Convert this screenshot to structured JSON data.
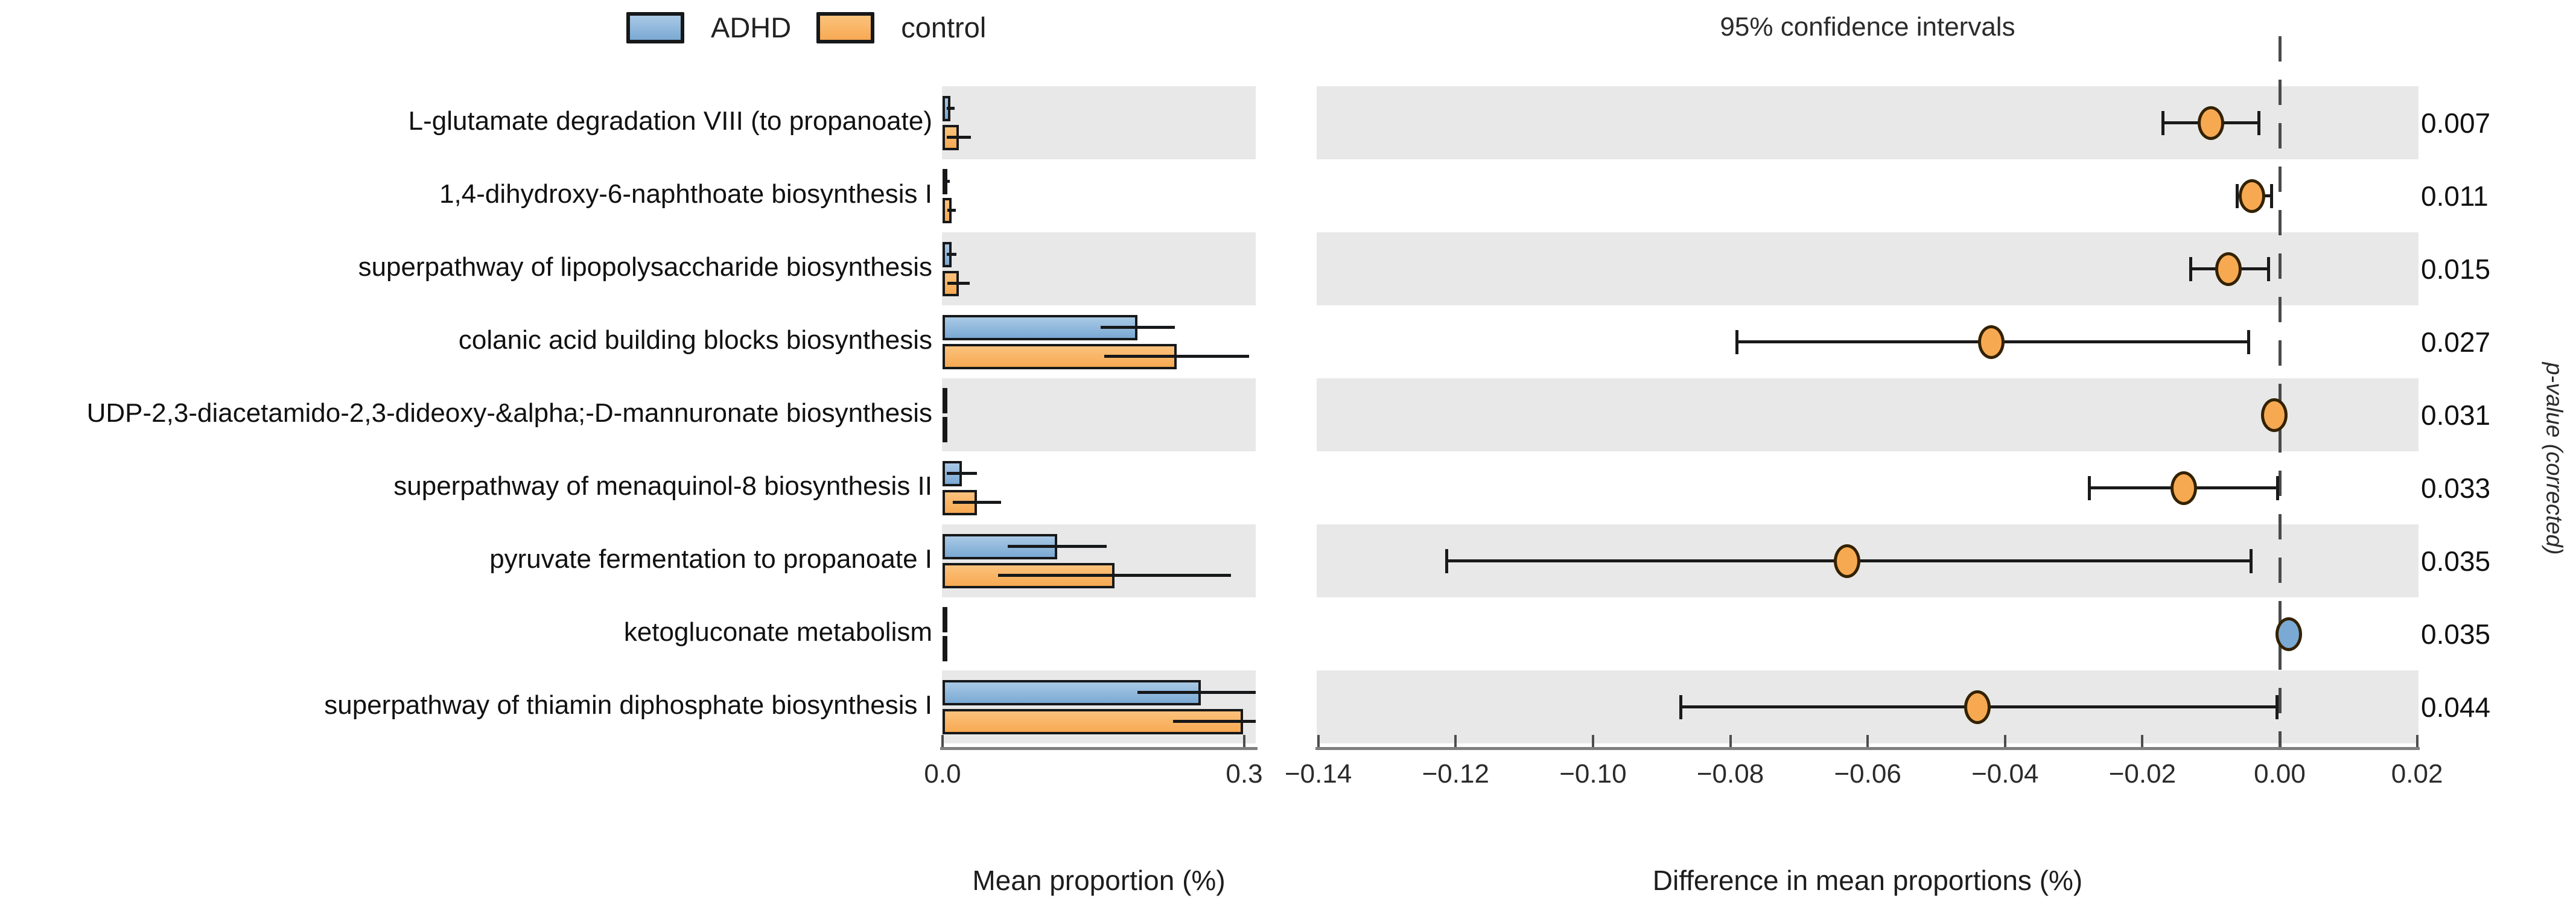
{
  "title": "95% confidence intervals",
  "legend": {
    "items": [
      {
        "label": "ADHD",
        "color": "#7aa9d4"
      },
      {
        "label": "control",
        "color": "#f7a952"
      }
    ]
  },
  "colors": {
    "adhd": "#7aa9d4",
    "adhd_gradient_top": "#a9c9e5",
    "control": "#f7a952",
    "control_gradient_top": "#fbc27c",
    "band": "#e8e8e8",
    "error_bar": "#16181a",
    "dot_border": "#332200",
    "axis": "#7f7f7f",
    "zero_line": "#4a4a4a"
  },
  "chart_data": {
    "type": "extended-error-bar",
    "groups": [
      "ADHD",
      "control"
    ],
    "title": "95% confidence intervals",
    "pvalue_axis_label": "p-value (corrected)",
    "left_panel": {
      "xlabel": "Mean proportion (%)",
      "xlim": [
        0,
        0.312
      ],
      "ticks": [
        {
          "value": 0.0,
          "label": "0.0"
        },
        {
          "value": 0.3,
          "label": "0.3"
        }
      ]
    },
    "right_panel": {
      "xlabel": "Difference in mean proportions (%)",
      "xlim": [
        -0.1403,
        0.0203
      ],
      "zero_line": 0,
      "ticks": [
        {
          "value": -0.14,
          "label": "−0.14"
        },
        {
          "value": -0.12,
          "label": "−0.12"
        },
        {
          "value": -0.1,
          "label": "−0.10"
        },
        {
          "value": -0.08,
          "label": "−0.08"
        },
        {
          "value": -0.06,
          "label": "−0.06"
        },
        {
          "value": -0.04,
          "label": "−0.04"
        },
        {
          "value": -0.02,
          "label": "−0.02"
        },
        {
          "value": 0.0,
          "label": "0.00"
        },
        {
          "value": 0.02,
          "label": "0.02"
        }
      ]
    },
    "rows": [
      {
        "label": "L-glutamate degradation VIII (to propanoate)",
        "adhd": {
          "mean": 0.008,
          "err": 0.004
        },
        "control": {
          "mean": 0.016,
          "err": 0.012
        },
        "diff": {
          "mean": -0.01,
          "ci": [
            -0.017,
            -0.003
          ],
          "higher_in": "control"
        },
        "p": "0.007"
      },
      {
        "label": "1,4-dihydroxy-6-naphthoate biosynthesis I",
        "adhd": {
          "mean": 0.005,
          "err": 0.002
        },
        "control": {
          "mean": 0.009,
          "err": 0.004
        },
        "diff": {
          "mean": -0.004,
          "ci": [
            -0.0062,
            -0.0012
          ],
          "higher_in": "control"
        },
        "p": "0.011"
      },
      {
        "label": "superpathway of lipopolysaccharide biosynthesis",
        "adhd": {
          "mean": 0.009,
          "err": 0.005
        },
        "control": {
          "mean": 0.016,
          "err": 0.011
        },
        "diff": {
          "mean": -0.0075,
          "ci": [
            -0.013,
            -0.0016
          ],
          "higher_in": "control"
        },
        "p": "0.015"
      },
      {
        "label": "colanic acid building blocks biosynthesis",
        "adhd": {
          "mean": 0.194,
          "err": 0.037
        },
        "control": {
          "mean": 0.233,
          "err": 0.072
        },
        "diff": {
          "mean": -0.042,
          "ci": [
            -0.079,
            -0.0045
          ],
          "higher_in": "control"
        },
        "p": "0.027"
      },
      {
        "label": "UDP-2,3-diacetamido-2,3-dideoxy-&alpha;-D-mannuronate biosynthesis",
        "adhd": {
          "mean": 0.002,
          "err": 0.001
        },
        "control": {
          "mean": 0.003,
          "err": 0.002
        },
        "diff": {
          "mean": -0.0008,
          "ci": [
            -0.0018,
            0.0002
          ],
          "higher_in": "control"
        },
        "p": "0.031"
      },
      {
        "label": "superpathway of menaquinol-8 biosynthesis II",
        "adhd": {
          "mean": 0.019,
          "err": 0.015
        },
        "control": {
          "mean": 0.034,
          "err": 0.024
        },
        "diff": {
          "mean": -0.014,
          "ci": [
            -0.0277,
            -0.0003
          ],
          "higher_in": "control"
        },
        "p": "0.033"
      },
      {
        "label": "pyruvate fermentation to propanoate I",
        "adhd": {
          "mean": 0.114,
          "err": 0.049
        },
        "control": {
          "mean": 0.171,
          "err": 0.116
        },
        "diff": {
          "mean": -0.063,
          "ci": [
            -0.1213,
            -0.0042
          ],
          "higher_in": "control"
        },
        "p": "0.035"
      },
      {
        "label": "ketogluconate metabolism",
        "adhd": {
          "mean": 0.0015,
          "err": 0.0008
        },
        "control": {
          "mean": 0.0005,
          "err": 0.0004
        },
        "diff": {
          "mean": 0.0013,
          "ci": [
            0.0008,
            0.0018
          ],
          "higher_in": "ADHD"
        },
        "p": "0.035"
      },
      {
        "label": "superpathway of thiamin diphosphate biosynthesis I",
        "adhd": {
          "mean": 0.257,
          "err": 0.063
        },
        "control": {
          "mean": 0.299,
          "err": 0.07
        },
        "diff": {
          "mean": -0.044,
          "ci": [
            -0.0872,
            -0.0004
          ],
          "higher_in": "control"
        },
        "p": "0.044"
      }
    ]
  }
}
